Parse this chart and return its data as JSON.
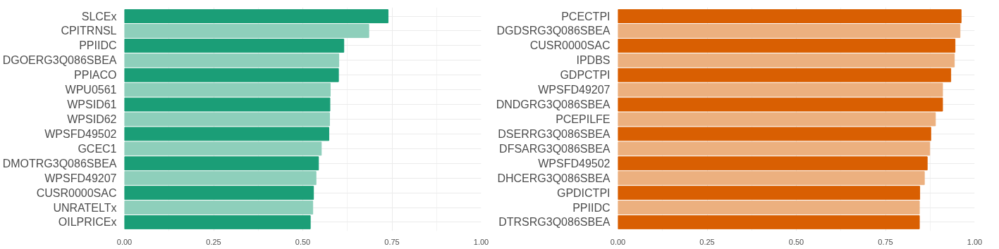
{
  "chart_data": [
    {
      "type": "bar",
      "orientation": "horizontal",
      "categories": [
        "SLCEx",
        "CPITRNSL",
        "PPIIDC",
        "DGOERG3Q086SBEA",
        "PPIACO",
        "WPU0561",
        "WPSID61",
        "WPSID62",
        "WPSFD49502",
        "GCEC1",
        "DMOTRG3Q086SBEA",
        "WPSFD49207",
        "CUSR0000SAC",
        "UNRATELTx",
        "OILPRICEx"
      ],
      "values": [
        0.739,
        0.685,
        0.615,
        0.601,
        0.6,
        0.577,
        0.576,
        0.575,
        0.573,
        0.552,
        0.544,
        0.537,
        0.53,
        0.528,
        0.521
      ],
      "colors": [
        "#1b9e77",
        "#8ecfbb",
        "#1b9e77",
        "#8ecfbb",
        "#1b9e77",
        "#8ecfbb",
        "#1b9e77",
        "#8ecfbb",
        "#1b9e77",
        "#8ecfbb",
        "#1b9e77",
        "#8ecfbb",
        "#1b9e77",
        "#8ecfbb",
        "#1b9e77"
      ],
      "xlim": [
        0,
        1.0
      ],
      "xticks": [
        {
          "value": 0,
          "label": "0.00"
        },
        {
          "value": 0.25,
          "label": "0.25"
        },
        {
          "value": 0.5,
          "label": "0.50"
        },
        {
          "value": 0.75,
          "label": "0.75"
        },
        {
          "value": 1,
          "label": "1.00"
        }
      ],
      "grid": true
    },
    {
      "type": "bar",
      "orientation": "horizontal",
      "categories": [
        "PCECTPI",
        "DGDSRG3Q086SBEA",
        "CUSR0000SAC",
        "IPDBS",
        "GDPCTPI",
        "WPSFD49207",
        "DNDGRG3Q086SBEA",
        "PCEPILFE",
        "DSERRG3Q086SBEA",
        "DFSARG3Q086SBEA",
        "WPSFD49502",
        "DHCERG3Q086SBEA",
        "GPDICTPI",
        "PPIIDC",
        "DTRSRG3Q086SBEA"
      ],
      "values": [
        0.962,
        0.959,
        0.945,
        0.943,
        0.933,
        0.91,
        0.91,
        0.89,
        0.877,
        0.874,
        0.867,
        0.859,
        0.846,
        0.845,
        0.845
      ],
      "colors": [
        "#d95f02",
        "#ecb07f",
        "#d95f02",
        "#ecb07f",
        "#d95f02",
        "#ecb07f",
        "#d95f02",
        "#ecb07f",
        "#d95f02",
        "#ecb07f",
        "#d95f02",
        "#ecb07f",
        "#d95f02",
        "#ecb07f",
        "#d95f02"
      ],
      "xlim": [
        0,
        1.0
      ],
      "xticks": [
        {
          "value": 0,
          "label": "0.00"
        },
        {
          "value": 0.25,
          "label": "0.25"
        },
        {
          "value": 0.5,
          "label": "0.50"
        },
        {
          "value": 0.75,
          "label": "0.75"
        },
        {
          "value": 1,
          "label": "1.00"
        }
      ],
      "grid": true
    }
  ]
}
